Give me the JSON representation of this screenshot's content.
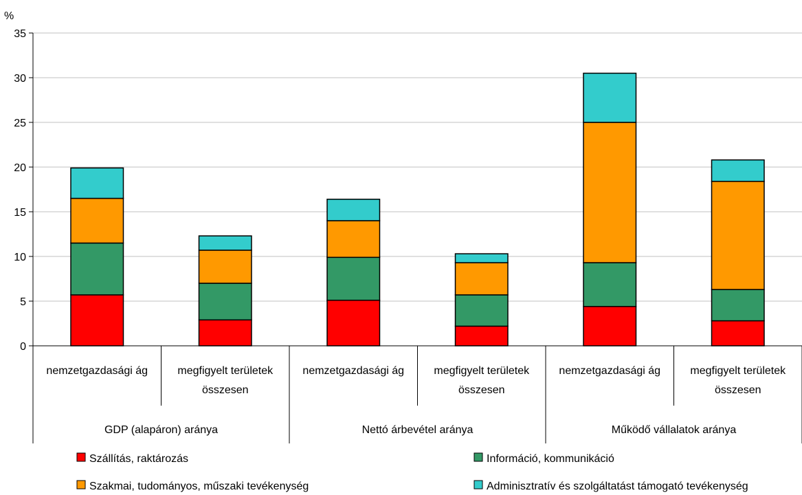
{
  "chart_data": {
    "type": "bar",
    "stacked": true,
    "ylabel": "%",
    "ylim": [
      0,
      35
    ],
    "yticks": [
      0,
      5,
      10,
      15,
      20,
      25,
      30,
      35
    ],
    "grid": true,
    "legend_position": "bottom",
    "groups": [
      {
        "label": "GDP (alapáron) aránya",
        "categories": [
          "nemzetgazdasági ág",
          "megfigyelt területek összesen"
        ]
      },
      {
        "label": "Nettó árbevétel aránya",
        "categories": [
          "nemzetgazdasági ág",
          "megfigyelt területek összesen"
        ]
      },
      {
        "label": "Működő vállalatok aránya",
        "categories": [
          "nemzetgazdasági ág",
          "megfigyelt területek összesen"
        ]
      }
    ],
    "series": [
      {
        "name": "Szállítás, raktározás",
        "color": "#ff0000",
        "values": [
          5.7,
          2.9,
          5.1,
          2.2,
          4.4,
          2.8
        ]
      },
      {
        "name": "Információ, kommunikáció",
        "color": "#339966",
        "values": [
          5.8,
          4.1,
          4.8,
          3.5,
          4.9,
          3.5
        ]
      },
      {
        "name": "Szakmai, tudományos, műszaki tevékenység",
        "color": "#ff9900",
        "values": [
          5.0,
          3.7,
          4.1,
          3.6,
          15.7,
          12.1
        ]
      },
      {
        "name": "Adminisztratív és szolgáltatást támogató tevékenység",
        "color": "#33cccc",
        "values": [
          3.4,
          1.6,
          2.4,
          1.0,
          5.5,
          2.4
        ]
      }
    ]
  }
}
